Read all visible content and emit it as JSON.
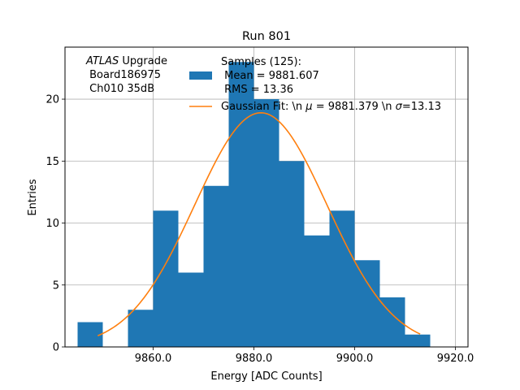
{
  "chart_data": {
    "type": "bar",
    "title": "Run 801",
    "xlabel": "Energy [ADC Counts]",
    "ylabel": "Entries",
    "xlim": [
      9842.5,
      9922.5
    ],
    "ylim": [
      0,
      24.2
    ],
    "grid": true,
    "x_ticks": [
      9860.0,
      9880.0,
      9900.0,
      9920.0
    ],
    "x_tick_labels": [
      "9860.0",
      "9880.0",
      "9900.0",
      "9920.0"
    ],
    "y_ticks": [
      0,
      5,
      10,
      15,
      20
    ],
    "y_tick_labels": [
      "0",
      "5",
      "10",
      "15",
      "20"
    ],
    "bin_edges": [
      9845,
      9850,
      9855,
      9860,
      9865,
      9870,
      9875,
      9880,
      9885,
      9890,
      9895,
      9900,
      9905,
      9910,
      9915
    ],
    "values": [
      2,
      0,
      3,
      11,
      6,
      13,
      23,
      20,
      15,
      9,
      11,
      7,
      4,
      1
    ],
    "fit": {
      "mu": 9881.379,
      "sigma": 13.13,
      "peak": 18.9,
      "x_range": [
        9849,
        9913
      ]
    },
    "annotation_lines": [
      "ATLAS Upgrade",
      " Board186975",
      " Ch010 35dB"
    ],
    "legend_position": "upper-right",
    "colors": {
      "bars": "#1f77b4",
      "fit": "#ff7f0e",
      "grid": "#b0b0b0"
    }
  },
  "annotation": {
    "atlas": "ATLAS",
    "upgrade": " Upgrade",
    "board": " Board186975",
    "channel": " Ch010 35dB"
  },
  "legend": {
    "samples_line1": "Samples (125):",
    "samples_line2": " Mean = 9881.607",
    "samples_line3": " RMS = 13.36",
    "fit_prefix": "Gaussian Fit: \\n ",
    "fit_mu_symbol": "μ",
    "fit_mid": " = 9881.379 \\n ",
    "fit_sigma_symbol": "σ",
    "fit_suffix": "=13.13"
  }
}
